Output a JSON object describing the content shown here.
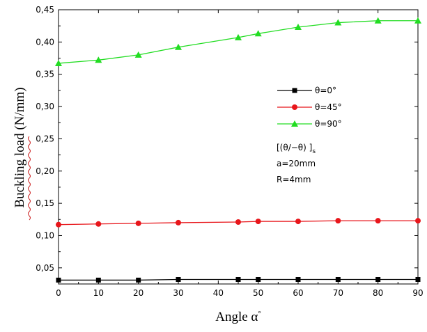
{
  "chart_data": {
    "type": "line",
    "xlabel": "Angle α",
    "xlabel_superscript": "°",
    "ylabel": "Buckling load (N/mm)",
    "xlim": [
      0,
      90
    ],
    "ylim": [
      0.025,
      0.45
    ],
    "x_ticks": [
      "0",
      "10",
      "20",
      "30",
      "40",
      "50",
      "60",
      "70",
      "80",
      "90"
    ],
    "y_ticks": [
      "0,05",
      "0,10",
      "0,15",
      "0,20",
      "0,25",
      "0,30",
      "0,35",
      "0,40",
      "0,45"
    ],
    "grid": false,
    "legend_position": "center-right",
    "series": [
      {
        "name": "θ=0°",
        "color": "#000000",
        "marker": "square",
        "x": [
          0,
          10,
          20,
          30,
          45,
          50,
          60,
          70,
          80,
          90
        ],
        "values": [
          0.031,
          0.031,
          0.031,
          0.032,
          0.032,
          0.032,
          0.032,
          0.032,
          0.032,
          0.032
        ]
      },
      {
        "name": "θ=45°",
        "color": "#e8161b",
        "marker": "circle",
        "x": [
          0,
          10,
          20,
          30,
          45,
          50,
          60,
          70,
          80,
          90
        ],
        "values": [
          0.117,
          0.118,
          0.119,
          0.12,
          0.121,
          0.122,
          0.122,
          0.123,
          0.123,
          0.123
        ]
      },
      {
        "name": "θ=90°",
        "color": "#22dd22",
        "marker": "triangle",
        "x": [
          0,
          10,
          20,
          30,
          45,
          50,
          60,
          70,
          80,
          90
        ],
        "values": [
          0.367,
          0.372,
          0.38,
          0.392,
          0.407,
          0.413,
          0.423,
          0.43,
          0.433,
          0.433
        ]
      }
    ],
    "annotations": [
      "[(θ/−θ) ]",
      "a=20mm",
      "R=4mm"
    ],
    "annotation_subscript": "s"
  }
}
